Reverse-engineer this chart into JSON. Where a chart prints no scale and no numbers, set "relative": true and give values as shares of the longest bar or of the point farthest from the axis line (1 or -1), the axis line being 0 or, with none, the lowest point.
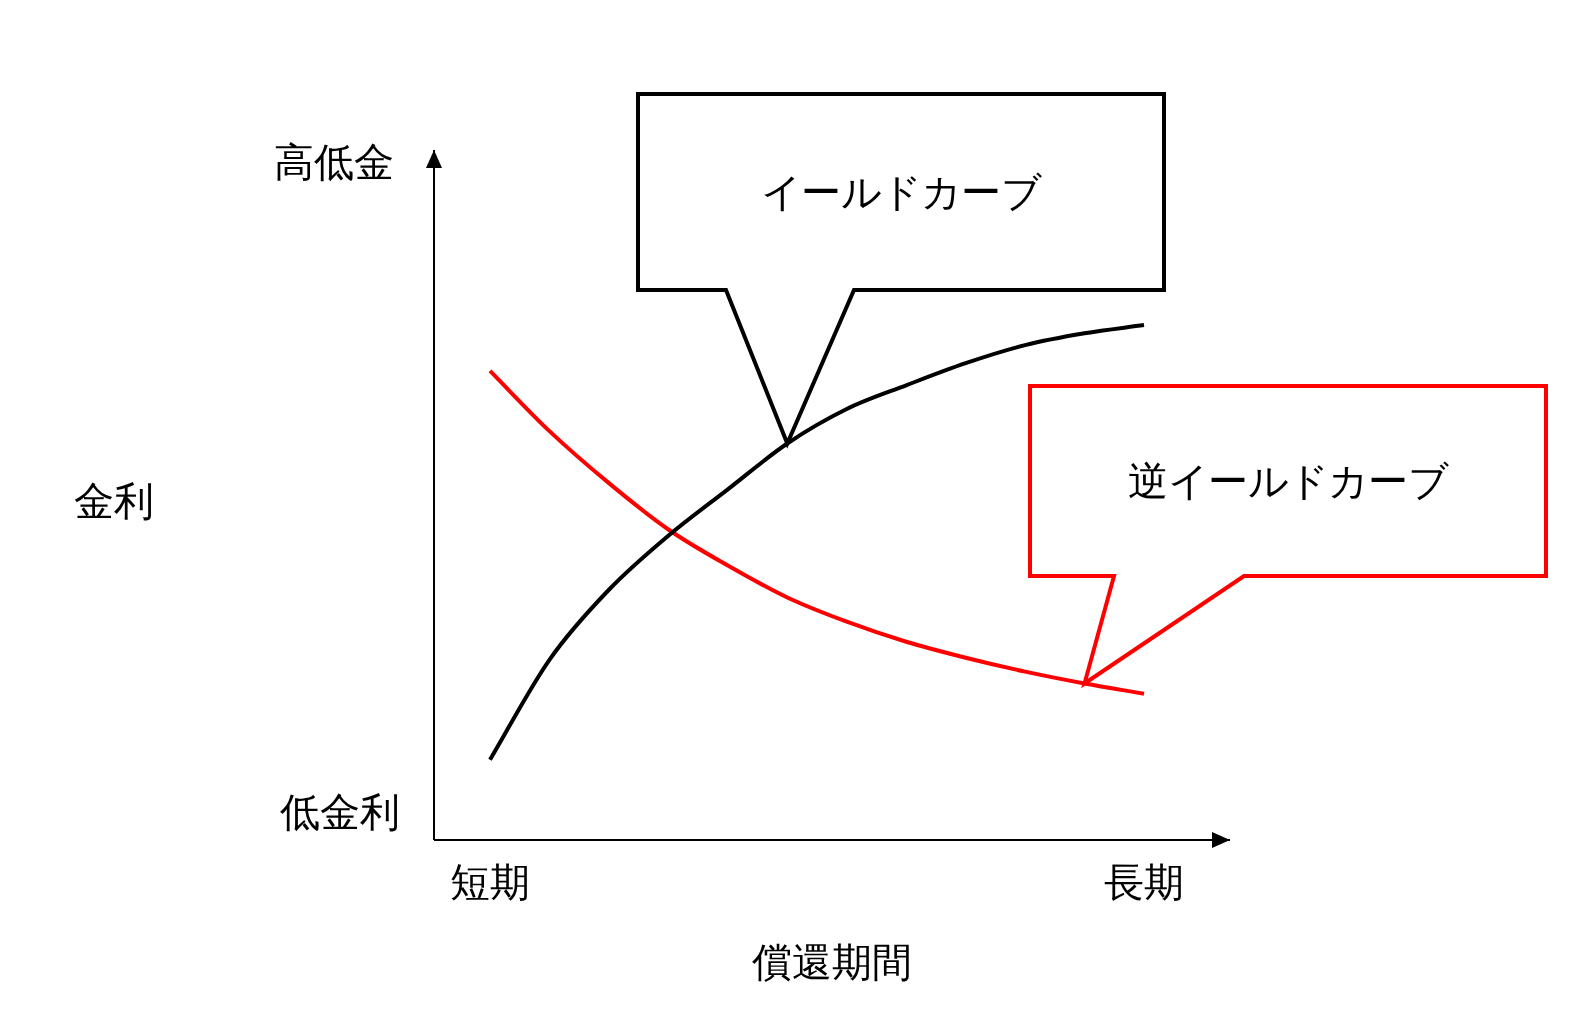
{
  "chart_data": {
    "type": "line",
    "relative": true,
    "legend": false,
    "marker": "none",
    "xlabel": "償還期間",
    "categories": [
      "短期",
      null,
      null,
      null,
      null,
      null,
      null,
      null,
      null,
      null,
      null,
      "長期"
    ],
    "series": [
      {
        "color": "#000000",
        "values": [
          0.156,
          0.35,
          0.486,
          0.591,
          0.681,
          0.77,
          0.837,
          0.883,
          0.926,
          0.961,
          0.984,
          1
        ]
      },
      {
        "color": "#ff0000",
        "values": [
          0.911,
          0.794,
          0.693,
          0.603,
          0.533,
          0.471,
          0.424,
          0.385,
          0.354,
          0.327,
          0.304,
          0.284
        ]
      }
    ],
    "annotations": [
      "金利",
      "高低金",
      "低金利",
      "イールドカーブ",
      "逆イールドカーブ"
    ]
  }
}
